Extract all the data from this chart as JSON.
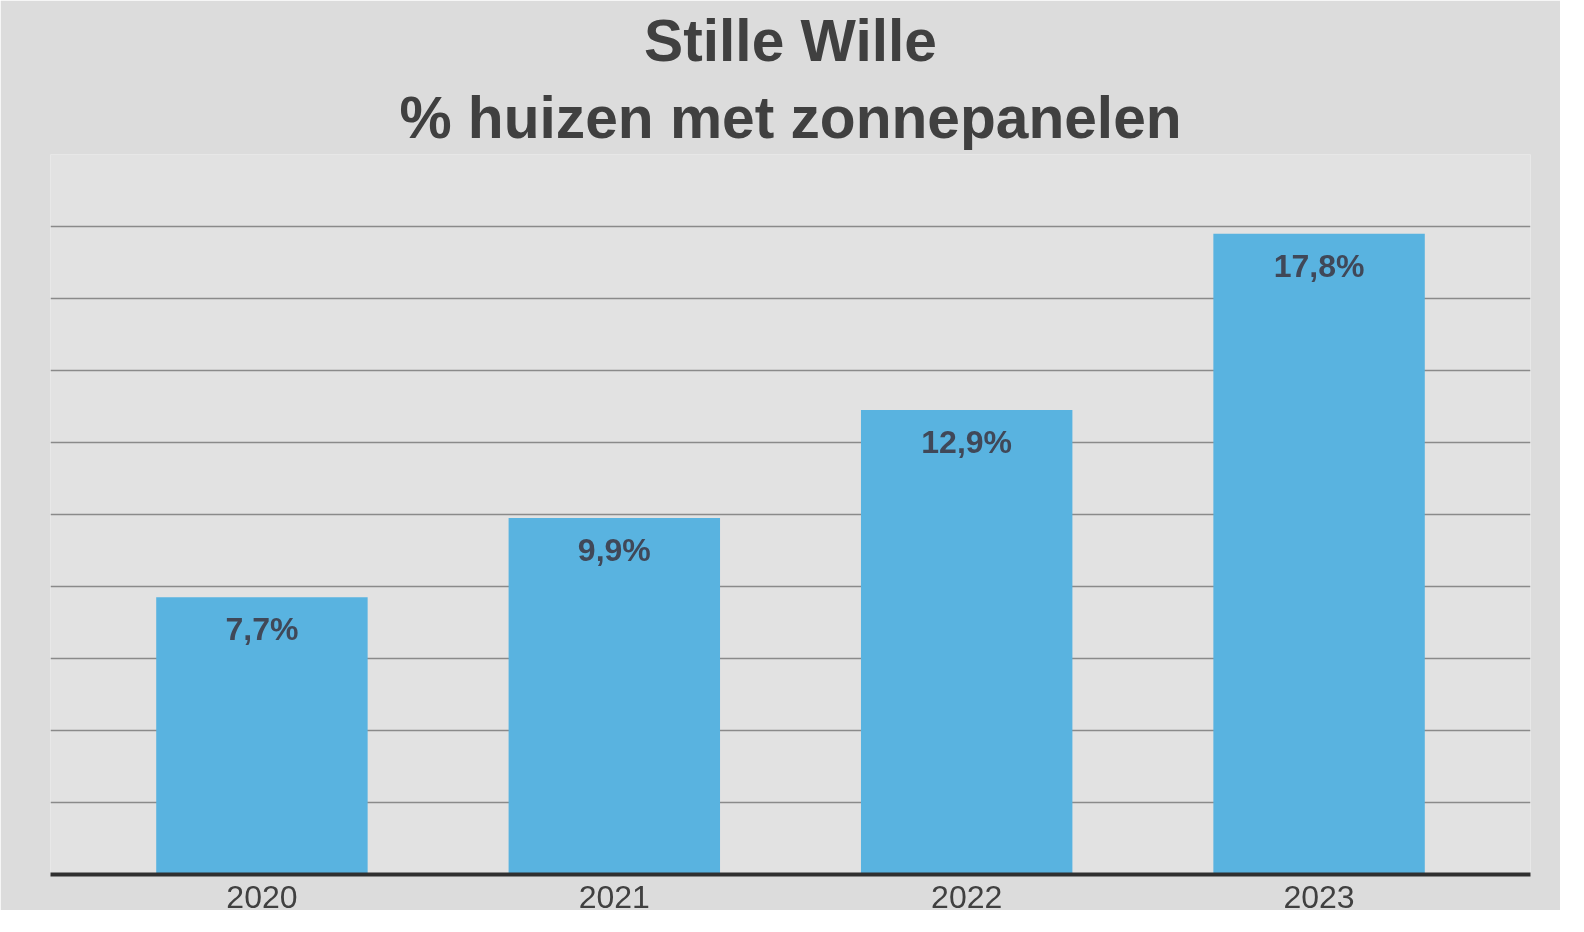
{
  "chart_data": {
    "type": "bar",
    "title": "Stille Wille",
    "subtitle": "% huizen met zonnepanelen",
    "categories": [
      "2020",
      "2021",
      "2022",
      "2023"
    ],
    "series": [
      {
        "color": "#59b3e0",
        "values": [
          7.7,
          9.9,
          12.9,
          17.8
        ],
        "value_labels": [
          "7,7%",
          "9,9%",
          "12,9%",
          "17,8%"
        ]
      }
    ],
    "ylim": [
      0,
      20
    ],
    "yticks": [
      {
        "value": 0,
        "label": null
      },
      {
        "value": 2,
        "label": null
      },
      {
        "value": 4,
        "label": null
      },
      {
        "value": 6,
        "label": null
      },
      {
        "value": 8,
        "label": null
      },
      {
        "value": 10,
        "label": null
      },
      {
        "value": 12,
        "label": null
      },
      {
        "value": 14,
        "label": null
      },
      {
        "value": 16,
        "label": null
      },
      {
        "value": 18,
        "label": null
      },
      {
        "value": 20,
        "label": null
      }
    ],
    "grid": "y",
    "tick_labels": "x"
  }
}
